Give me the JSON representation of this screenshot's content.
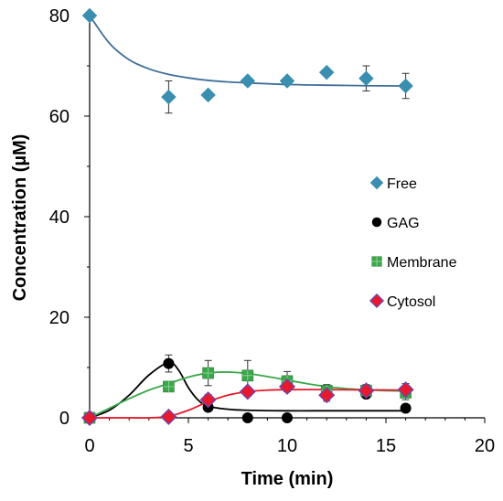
{
  "chart_data": {
    "type": "scatter",
    "title": "",
    "xlabel": "Time (min)",
    "ylabel": "Concentration (µM)",
    "xlim": [
      0,
      20
    ],
    "ylim": [
      0,
      80
    ],
    "x_ticks": [
      0,
      5,
      10,
      15,
      20
    ],
    "y_ticks": [
      0,
      20,
      40,
      60,
      80
    ],
    "x_tick_labels": [
      "0",
      "5",
      "10",
      "15",
      "20"
    ],
    "y_tick_labels": [
      "0",
      "20",
      "40",
      "60",
      "80"
    ],
    "grid": false,
    "legend_position": "right",
    "series": [
      {
        "name": "Free",
        "marker": "diamond",
        "color": "#3a8fb0",
        "line_color": "#3f6f9a",
        "x": [
          0,
          4,
          6,
          8,
          10,
          12,
          14,
          16
        ],
        "y": [
          80,
          63.8,
          64.2,
          67,
          67,
          68.7,
          67.5,
          66
        ],
        "error": [
          0,
          3.2,
          0,
          0,
          0,
          0,
          2.5,
          2.5
        ],
        "fit": [
          [
            0,
            80
          ],
          [
            1,
            74.5
          ],
          [
            2,
            71.2
          ],
          [
            3,
            69.4
          ],
          [
            4,
            68.3
          ],
          [
            5,
            67.6
          ],
          [
            6,
            67.1
          ],
          [
            7,
            66.8
          ],
          [
            8,
            66.6
          ],
          [
            10,
            66.3
          ],
          [
            12,
            66.15
          ],
          [
            14,
            66.05
          ],
          [
            16,
            66.0
          ]
        ]
      },
      {
        "name": "GAG",
        "marker": "circle",
        "color": "#000000",
        "line_color": "#000000",
        "x": [
          0,
          4,
          6,
          8,
          10,
          14,
          16
        ],
        "y": [
          0,
          10.8,
          2.1,
          0,
          0,
          4.7,
          1.9
        ],
        "error": [
          0,
          1.7,
          0,
          0,
          0,
          0,
          0
        ],
        "fit": [
          [
            0,
            0
          ],
          [
            1,
            1.5
          ],
          [
            2,
            4.5
          ],
          [
            3,
            8.5
          ],
          [
            4,
            11
          ],
          [
            4.5,
            9.5
          ],
          [
            5,
            6
          ],
          [
            5.5,
            3.5
          ],
          [
            6,
            2.3
          ],
          [
            7,
            1.7
          ],
          [
            8,
            1.5
          ],
          [
            10,
            1.4
          ],
          [
            12,
            1.4
          ],
          [
            14,
            1.4
          ],
          [
            16,
            1.4
          ]
        ]
      },
      {
        "name": "Membrane",
        "marker": "square",
        "color": "#3aa84a",
        "line_color": "#3aa84a",
        "x": [
          0,
          4,
          6,
          8,
          10,
          12,
          14,
          16
        ],
        "y": [
          0,
          6.2,
          8.9,
          8.4,
          7.3,
          5.4,
          5.4,
          5.0
        ],
        "error": [
          0,
          0,
          2.5,
          3.0,
          1.9,
          1.2,
          1.2,
          1.4
        ],
        "fit": [
          [
            0,
            0
          ],
          [
            1,
            1.9
          ],
          [
            2,
            3.8
          ],
          [
            3,
            5.5
          ],
          [
            4,
            6.8
          ],
          [
            5,
            8.1
          ],
          [
            6,
            8.9
          ],
          [
            7,
            9.1
          ],
          [
            8,
            8.8
          ],
          [
            9,
            8.2
          ],
          [
            10,
            7.5
          ],
          [
            11,
            6.8
          ],
          [
            12,
            6.2
          ],
          [
            13,
            5.8
          ],
          [
            14,
            5.55
          ],
          [
            15,
            5.4
          ],
          [
            16,
            5.3
          ]
        ]
      },
      {
        "name": "Cytosol",
        "marker": "diamond",
        "color": "#e8192c",
        "edge_color": "#7b3fa0",
        "line_color": "#e8192c",
        "x": [
          0,
          4,
          6,
          8,
          10,
          12,
          14,
          16
        ],
        "y": [
          0,
          0.2,
          3.6,
          5.2,
          6.2,
          4.5,
          5.4,
          5.6
        ],
        "error": [
          0,
          0,
          1.0,
          0.9,
          1.0,
          1.2,
          1.0,
          1.2
        ],
        "fit": [
          [
            0,
            0
          ],
          [
            2,
            0
          ],
          [
            3,
            0
          ],
          [
            4,
            0.3
          ],
          [
            5,
            1.5
          ],
          [
            6,
            3.2
          ],
          [
            7,
            4.5
          ],
          [
            8,
            5.2
          ],
          [
            9,
            5.5
          ],
          [
            10,
            5.6
          ],
          [
            12,
            5.6
          ],
          [
            14,
            5.55
          ],
          [
            16,
            5.5
          ]
        ]
      }
    ]
  }
}
